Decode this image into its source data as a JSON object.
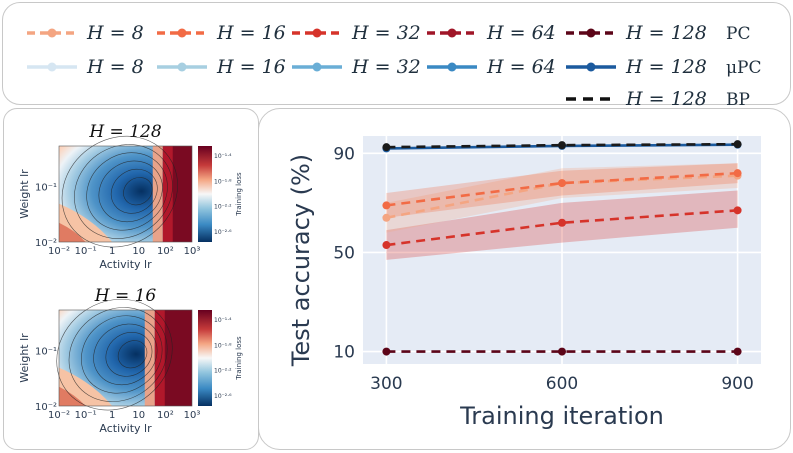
{
  "legend": {
    "rows": [
      {
        "tag": "PC",
        "items": [
          {
            "label": "H = 8",
            "color": "#f4a582",
            "dash": "8,5",
            "marker": true
          },
          {
            "label": "H = 16",
            "color": "#f26b45",
            "dash": "8,5",
            "marker": true
          },
          {
            "label": "H = 32",
            "color": "#d6332a",
            "dash": "8,5",
            "marker": true
          },
          {
            "label": "H = 64",
            "color": "#a01628",
            "dash": "8,5",
            "marker": true
          },
          {
            "label": "H = 128",
            "color": "#5c0518",
            "dash": "8,5",
            "marker": true
          }
        ]
      },
      {
        "tag": "μPC",
        "items": [
          {
            "label": "H = 8",
            "color": "#d6e6f2",
            "dash": "",
            "marker": true
          },
          {
            "label": "H = 16",
            "color": "#a7cfe1",
            "dash": "",
            "marker": true
          },
          {
            "label": "H = 32",
            "color": "#6aaed6",
            "dash": "",
            "marker": true
          },
          {
            "label": "H = 64",
            "color": "#3a89c3",
            "dash": "",
            "marker": true
          },
          {
            "label": "H = 128",
            "color": "#1b5a9e",
            "dash": "",
            "marker": true
          }
        ]
      },
      {
        "tag": "BP",
        "items": [
          {
            "label": "H = 128",
            "color": "#111111",
            "dash": "10,7",
            "marker": false
          }
        ]
      }
    ]
  },
  "heatmaps": [
    {
      "title": "H = 128",
      "xlabel": "Activity lr",
      "ylabel": "Weight lr",
      "xticks": [
        "10⁻²",
        "10⁻¹",
        "1",
        "10",
        "10²",
        "10³"
      ],
      "yticks": [
        "10⁻¹",
        "10⁻²"
      ],
      "cbar_label": "Training loss",
      "cbar_ticks": [
        "10⁻¹·⁴",
        "10⁻¹·⁸",
        "10⁻²·²",
        "10⁻²·⁶"
      ],
      "min_at": [
        0.62,
        0.47
      ],
      "red_from": 0.78
    },
    {
      "title": "H = 16",
      "xlabel": "Activity lr",
      "ylabel": "Weight lr",
      "xticks": [
        "10⁻²",
        "10⁻¹",
        "1",
        "10",
        "10²",
        "10³"
      ],
      "yticks": [
        "10⁻¹",
        "10⁻²"
      ],
      "cbar_label": "Training loss",
      "cbar_ticks": [
        "10⁻¹·⁴",
        "10⁻¹·⁸",
        "10⁻²·²",
        "10⁻²·⁶"
      ],
      "min_at": [
        0.58,
        0.46
      ],
      "red_from": 0.72
    }
  ],
  "chart_data": {
    "type": "line",
    "x": [
      300,
      600,
      900
    ],
    "xlabel": "Training iteration",
    "ylabel": "Test accuracy (%)",
    "ylim": [
      5,
      97
    ],
    "xlim": [
      260,
      940
    ],
    "yticks": [
      10,
      50,
      90
    ],
    "xticks": [
      300,
      600,
      900
    ],
    "grid": true,
    "series": [
      {
        "name": "PC H = 128",
        "color": "#5c0518",
        "dash": true,
        "values": [
          10,
          10,
          10
        ],
        "band": null
      },
      {
        "name": "PC H = 32",
        "color": "#d6332a",
        "dash": true,
        "values": [
          53,
          62,
          67
        ],
        "band": [
          [
            47,
            59
          ],
          [
            54,
            70
          ],
          [
            60,
            75
          ]
        ]
      },
      {
        "name": "PC H = 8",
        "color": "#f4a582",
        "dash": true,
        "values": [
          64,
          78,
          81
        ],
        "band": [
          [
            58,
            70
          ],
          [
            72,
            84
          ],
          [
            76,
            86
          ]
        ]
      },
      {
        "name": "PC H = 16",
        "color": "#f26b45",
        "dash": true,
        "values": [
          69,
          78,
          82
        ],
        "band": [
          [
            64,
            74
          ],
          [
            73,
            83
          ],
          [
            78,
            86
          ]
        ]
      },
      {
        "name": "μPC H = 128",
        "color": "#1b5a9e",
        "dash": false,
        "values": [
          92,
          93,
          93.5
        ],
        "band": null
      },
      {
        "name": "BP H = 128",
        "color": "#1a1a1a",
        "dash": true,
        "values": [
          92.5,
          93.3,
          93.7
        ],
        "band": null
      }
    ]
  }
}
